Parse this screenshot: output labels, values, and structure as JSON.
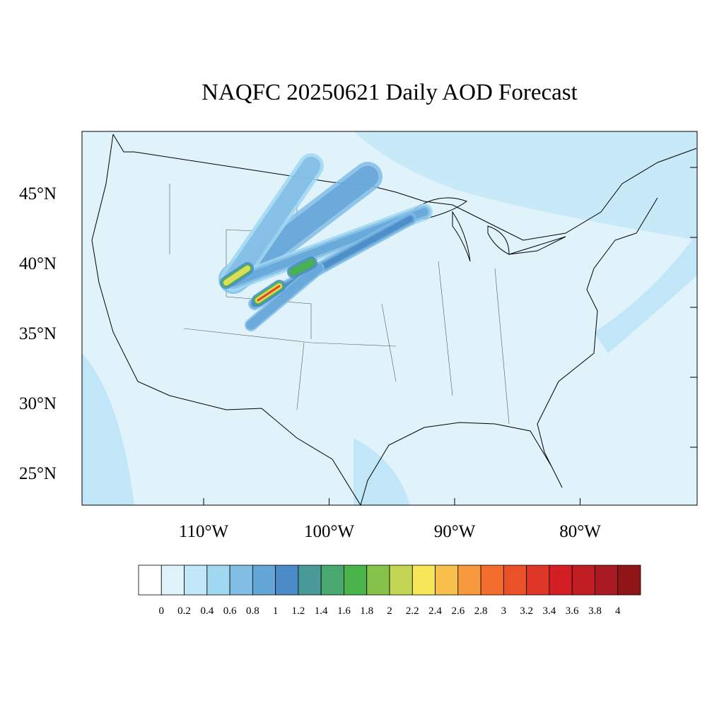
{
  "title": "NAQFC 20250621 Daily AOD Forecast",
  "map": {
    "lat_ticks": [
      {
        "value": 25,
        "label": "25°N"
      },
      {
        "value": 30,
        "label": "30°N"
      },
      {
        "value": 35,
        "label": "35°N"
      },
      {
        "value": 40,
        "label": "40°N"
      },
      {
        "value": 45,
        "label": "45°N"
      }
    ],
    "lon_ticks": [
      {
        "value": -110,
        "label": "110°W"
      },
      {
        "value": -100,
        "label": "100°W"
      },
      {
        "value": -90,
        "label": "90°W"
      },
      {
        "value": -80,
        "label": "80°W"
      }
    ]
  },
  "colorbar": {
    "levels": [
      0,
      0.2,
      0.4,
      0.6,
      0.8,
      1,
      1.2,
      1.4,
      1.6,
      1.8,
      2,
      2.2,
      2.4,
      2.6,
      2.8,
      3,
      3.2,
      3.4,
      3.6,
      3.8,
      4
    ],
    "colors": [
      "#ffffff",
      "#e0f3fb",
      "#c0e6f7",
      "#a0d8f2",
      "#82bde6",
      "#65a6d9",
      "#4a8bc8",
      "#4b9a9a",
      "#48a86f",
      "#4ab44a",
      "#86c34b",
      "#c2d654",
      "#f6e658",
      "#f8c04a",
      "#f79a3d",
      "#f36d2f",
      "#ea5129",
      "#de3627",
      "#d41f26",
      "#bf1c24",
      "#aa1a22",
      "#8f1517"
    ]
  }
}
